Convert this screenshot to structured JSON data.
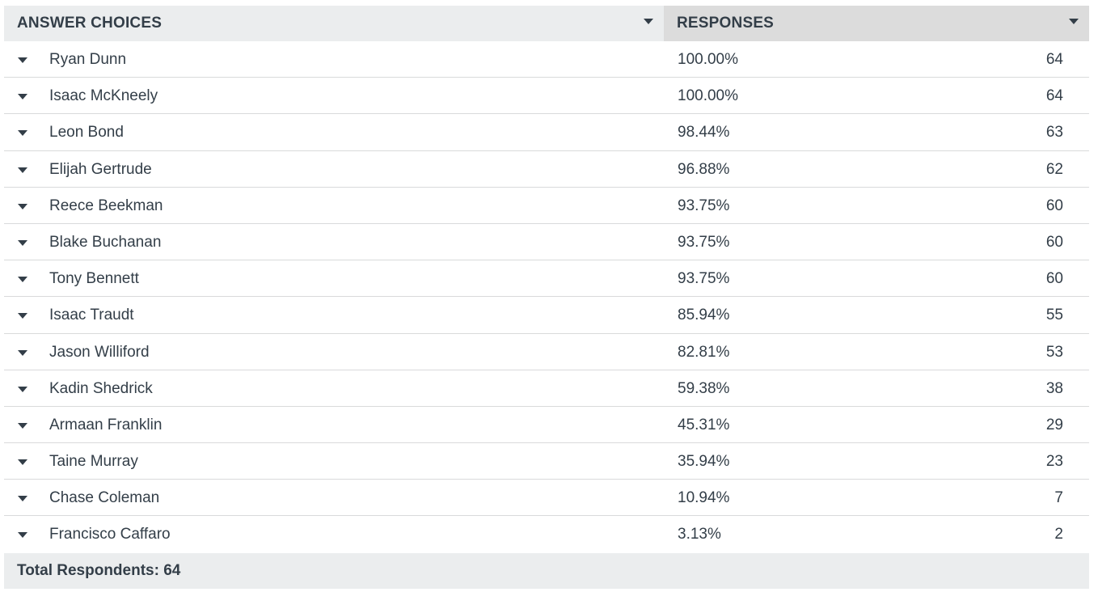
{
  "header": {
    "answer_choices": "ANSWER CHOICES",
    "responses": "RESPONSES"
  },
  "rows": [
    {
      "label": "Ryan Dunn",
      "percent": "100.00%",
      "count": "64"
    },
    {
      "label": "Isaac McKneely",
      "percent": "100.00%",
      "count": "64"
    },
    {
      "label": "Leon Bond",
      "percent": "98.44%",
      "count": "63"
    },
    {
      "label": "Elijah Gertrude",
      "percent": "96.88%",
      "count": "62"
    },
    {
      "label": "Reece Beekman",
      "percent": "93.75%",
      "count": "60"
    },
    {
      "label": "Blake Buchanan",
      "percent": "93.75%",
      "count": "60"
    },
    {
      "label": "Tony Bennett",
      "percent": "93.75%",
      "count": "60"
    },
    {
      "label": "Isaac Traudt",
      "percent": "85.94%",
      "count": "55"
    },
    {
      "label": "Jason Williford",
      "percent": "82.81%",
      "count": "53"
    },
    {
      "label": "Kadin Shedrick",
      "percent": "59.38%",
      "count": "38"
    },
    {
      "label": "Armaan Franklin",
      "percent": "45.31%",
      "count": "29"
    },
    {
      "label": "Taine Murray",
      "percent": "35.94%",
      "count": "23"
    },
    {
      "label": "Chase Coleman",
      "percent": "10.94%",
      "count": "7"
    },
    {
      "label": "Francisco Caffaro",
      "percent": "3.13%",
      "count": "2"
    }
  ],
  "footer": {
    "total_label": "Total Respondents: 64"
  },
  "icons": {
    "sort": "chevron-down-icon",
    "row_expand": "caret-down-icon"
  },
  "colors": {
    "text": "#333e48",
    "header_choices_bg": "#ebedee",
    "header_responses_bg": "#dcdcdc",
    "footer_bg": "#ebedee",
    "row_divider": "#d9dadb"
  }
}
